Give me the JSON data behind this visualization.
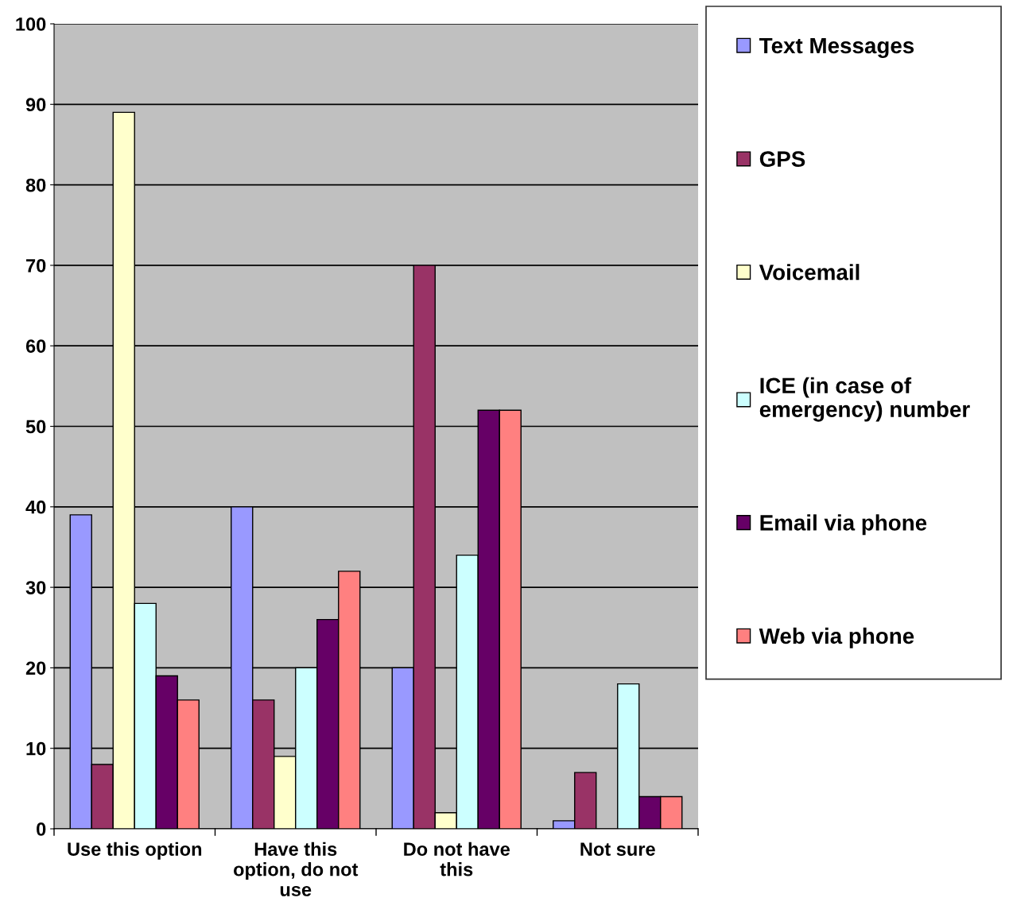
{
  "chart_data": {
    "type": "bar",
    "categories": [
      "Use this option",
      "Have this option, do not use",
      "Do not have this",
      "Not sure"
    ],
    "series": [
      {
        "name": "Text Messages",
        "color": "#9999ff",
        "values": [
          39,
          40,
          20,
          1
        ]
      },
      {
        "name": "GPS",
        "color": "#993366",
        "values": [
          8,
          16,
          70,
          7
        ]
      },
      {
        "name": "Voicemail",
        "color": "#ffffcc",
        "values": [
          89,
          9,
          2,
          null
        ]
      },
      {
        "name": "ICE (in case of emergency) number",
        "color": "#ccffff",
        "values": [
          28,
          20,
          34,
          18
        ]
      },
      {
        "name": "Email via phone",
        "color": "#660066",
        "values": [
          19,
          26,
          52,
          4
        ]
      },
      {
        "name": "Web via phone",
        "color": "#ff8080",
        "values": [
          16,
          32,
          52,
          4
        ]
      }
    ],
    "ylim": [
      0,
      100
    ],
    "yticks": [
      0,
      10,
      20,
      30,
      40,
      50,
      60,
      70,
      80,
      90,
      100
    ],
    "grid": "y",
    "legend": "right"
  }
}
